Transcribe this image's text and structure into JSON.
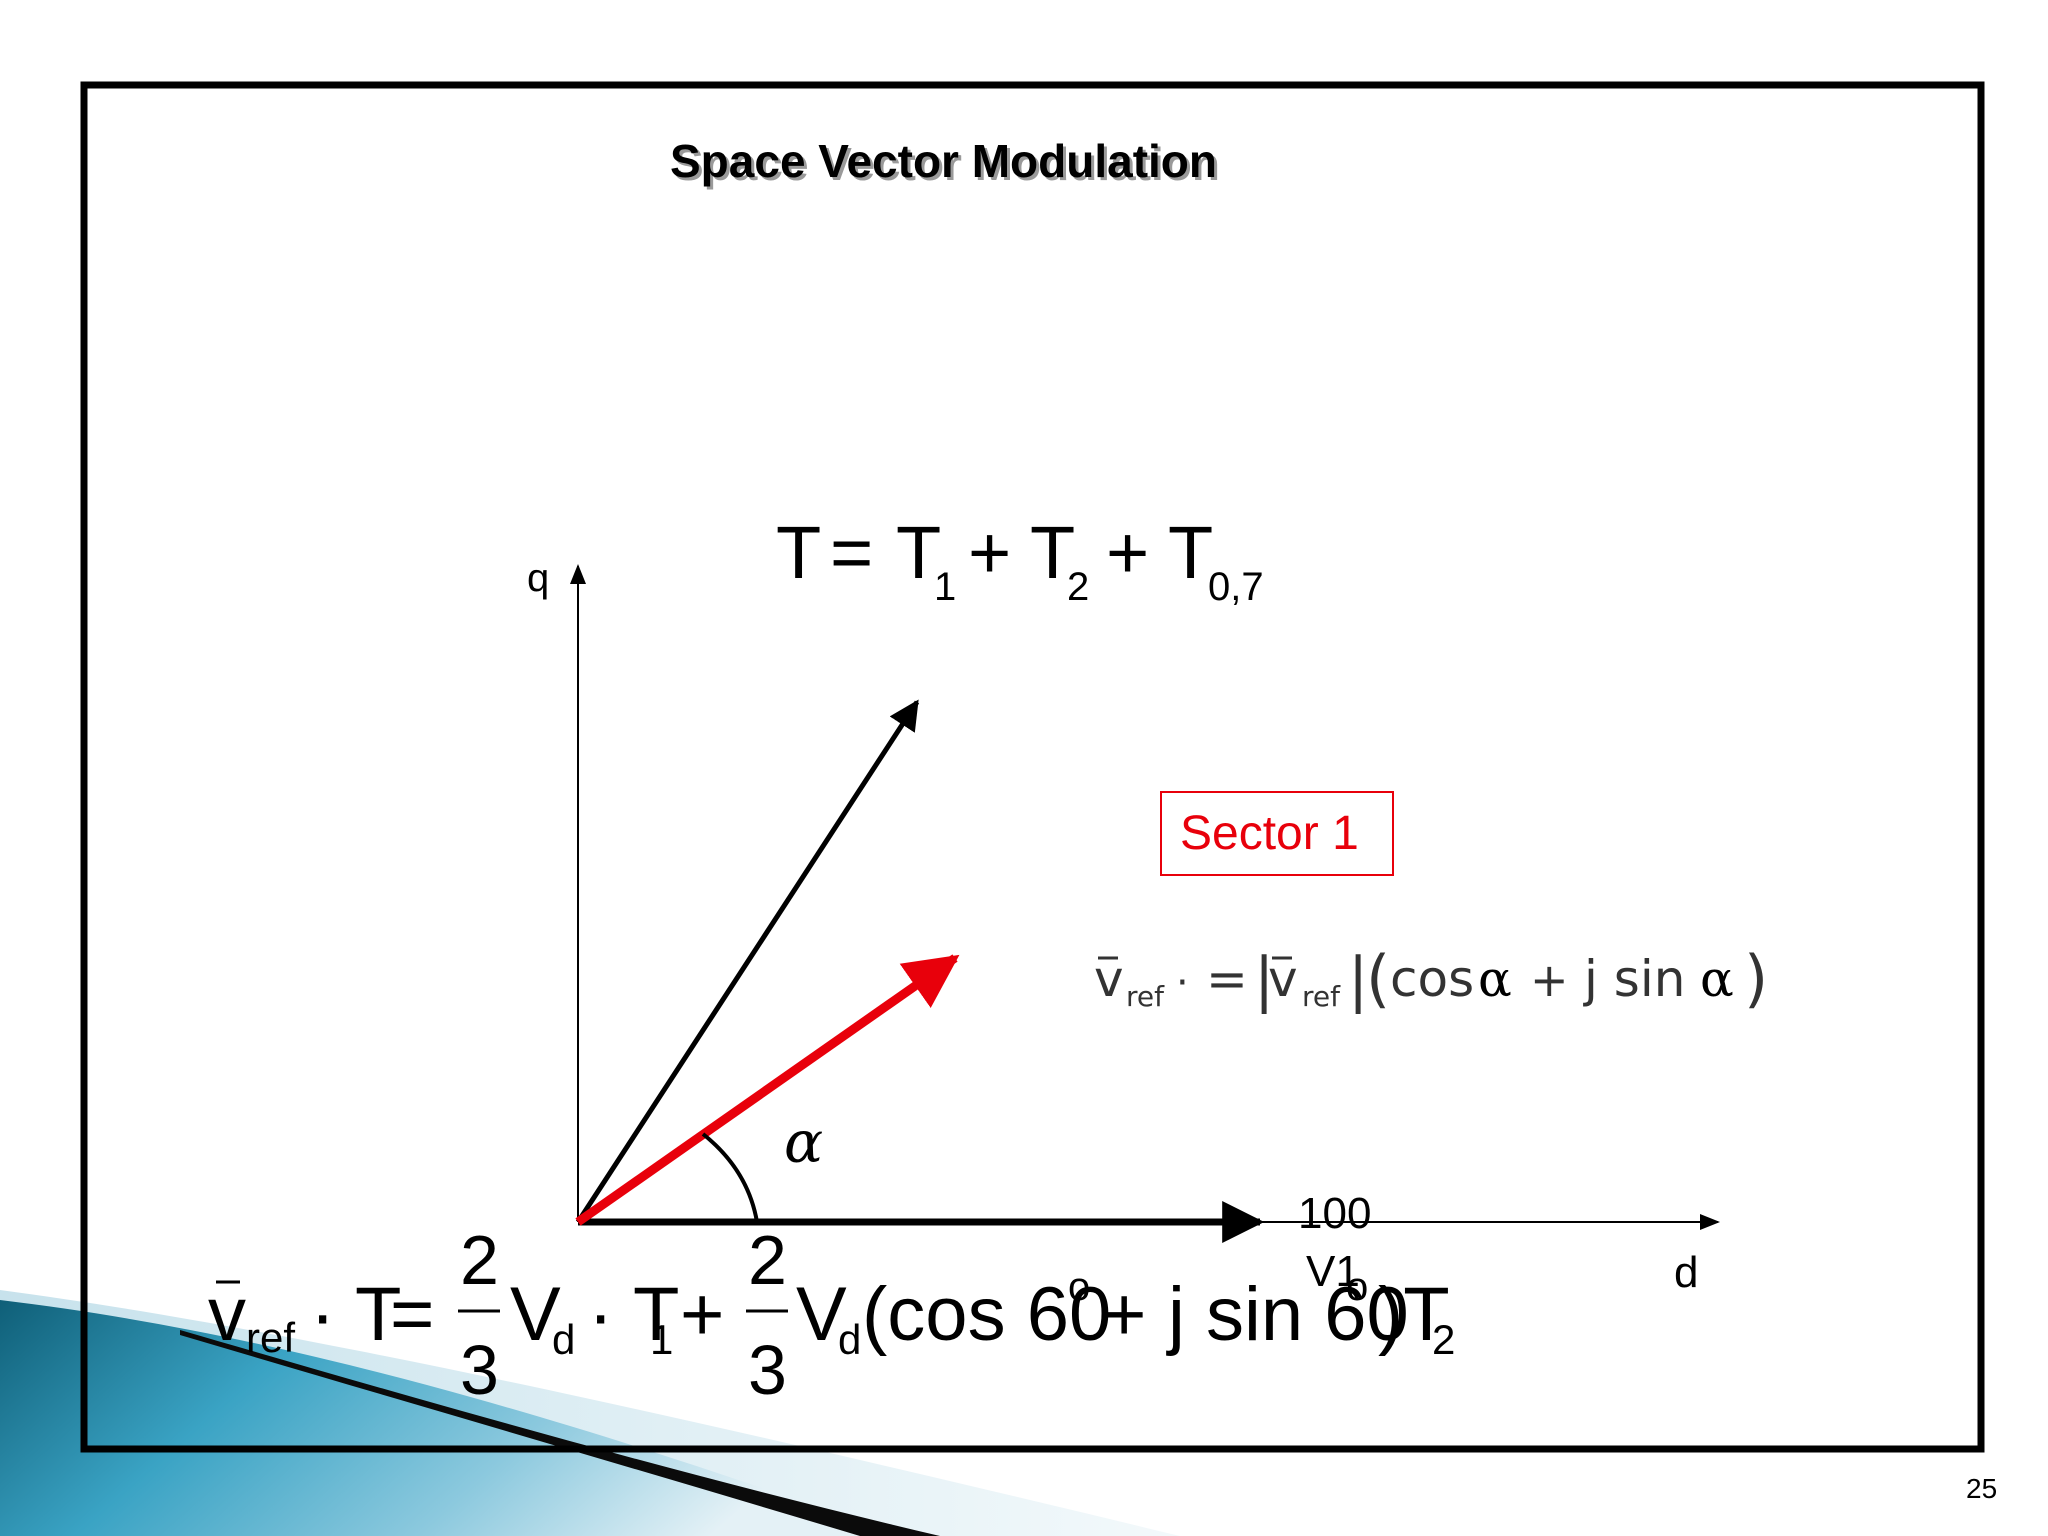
{
  "slide": {
    "title": "Space Vector Modulation",
    "page_number": "25"
  },
  "axes": {
    "q_label": "q",
    "d_label": "d"
  },
  "vectors": {
    "v1_label_top": "100",
    "v1_label_bottom": "V1",
    "angle_label": "α"
  },
  "sector": {
    "label": "Sector 1",
    "color": "#e8000b"
  },
  "equations": {
    "total_time": {
      "T": "T",
      "eq": "=",
      "T1": "T",
      "T1_sub": "1",
      "plus1": "+",
      "T2": "T",
      "T2_sub": "2",
      "plus2": "+",
      "T07": "T",
      "T07_sub": "0,7"
    },
    "vref_polar": {
      "v": "v",
      "v_sub": "ref",
      "dot": "·",
      "eq": "=",
      "bar_left": "|",
      "v2": "v",
      "v2_sub": "ref",
      "bar_right": "|",
      "paren_open": "(",
      "cos": "cos",
      "alpha1": "α",
      "plus": "+",
      "jsin": "j sin",
      "alpha2": "α",
      "paren_close": ")"
    },
    "vref_time": {
      "v": "v",
      "v_sub": "ref",
      "dotT": "· T",
      "eq": "=",
      "num1": "2",
      "den1": "3",
      "Vd1": "V",
      "Vd1_sub": "d",
      "dotT1": "· T",
      "T1_sub": "1",
      "plus1": "+",
      "num2": "2",
      "den2": "3",
      "Vd2": "V",
      "Vd2_sub": "d",
      "cos_part": "(cos 60",
      "deg1": "o",
      "plus2": "+",
      "jsin_part": "j sin 60",
      "deg2": "o",
      "close_T2": ")T",
      "T2_sub": "2"
    }
  },
  "colors": {
    "vector_ref": "#e8000b",
    "frame": "#000000",
    "deco_dark": "#1f6f86",
    "deco_light": "#cfe4ee"
  }
}
